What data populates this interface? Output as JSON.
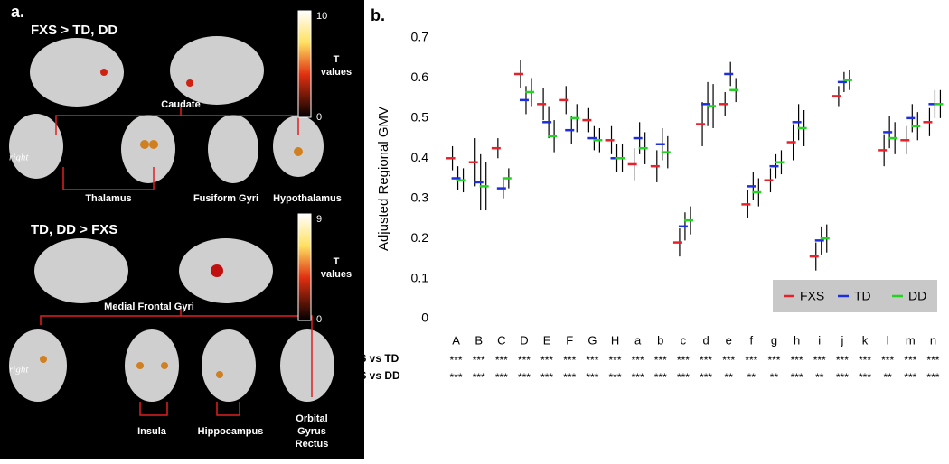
{
  "panel_a": {
    "label": "a.",
    "top": {
      "title": "FXS > TD, DD",
      "cbar_max": "10",
      "cbar_min": "0",
      "cbar_title": [
        "T",
        "values"
      ],
      "regions": [
        "Caudate",
        "Thalamus",
        "Fusiform Gyri",
        "Hypothalamus"
      ],
      "side": "right"
    },
    "bottom": {
      "title": "TD, DD > FXS",
      "cbar_max": "9",
      "cbar_min": "0",
      "cbar_title": [
        "T",
        "values"
      ],
      "regions": [
        "Medial Frontal Gyri",
        "Insula",
        "Hippocampus"
      ],
      "region_multiline": [
        "Orbital",
        "Gyrus",
        "Rectus"
      ],
      "side": "right"
    }
  },
  "chart_data": {
    "type": "errorbar",
    "panel_label": "b.",
    "y_label": "Adjusted Regional GMV",
    "categories": [
      "A",
      "B",
      "C",
      "D",
      "E",
      "F",
      "G",
      "H",
      "a",
      "b",
      "c",
      "d",
      "e",
      "f",
      "g",
      "h",
      "i",
      "j",
      "k",
      "l",
      "m",
      "n"
    ],
    "ylim": [
      0,
      0.7
    ],
    "yticks": [
      0,
      0.1,
      0.2,
      0.3,
      0.4,
      0.5,
      0.6,
      0.7
    ],
    "yticklabels": [
      "0",
      "0.1",
      "0.2",
      "0.3",
      "0.4",
      "0.5",
      "0.6",
      "0.7"
    ],
    "legend": "lower right",
    "series": [
      {
        "name": "FXS",
        "color": "#e8202a",
        "values": [
          0.4,
          0.39,
          0.425,
          0.61,
          0.535,
          0.545,
          0.495,
          0.445,
          0.385,
          0.38,
          0.19,
          0.485,
          0.535,
          0.285,
          0.345,
          0.44,
          0.155,
          0.555,
          null,
          0.42,
          0.445,
          0.49
        ],
        "errors": [
          0.03,
          0.06,
          0.025,
          0.035,
          0.04,
          0.035,
          0.03,
          0.035,
          0.04,
          0.04,
          0.035,
          0.055,
          0.03,
          0.035,
          0.03,
          0.045,
          0.035,
          0.025,
          null,
          0.04,
          0.035,
          0.035
        ]
      },
      {
        "name": "TD",
        "color": "#1c2ee0",
        "values": [
          0.35,
          0.34,
          0.325,
          0.545,
          0.49,
          0.47,
          0.45,
          0.4,
          0.45,
          0.435,
          0.23,
          0.535,
          0.61,
          0.33,
          0.38,
          0.49,
          0.195,
          0.59,
          null,
          0.465,
          0.5,
          0.535
        ],
        "errors": [
          0.03,
          0.07,
          0.025,
          0.035,
          0.04,
          0.035,
          0.03,
          0.035,
          0.04,
          0.04,
          0.035,
          0.055,
          0.03,
          0.035,
          0.03,
          0.045,
          0.035,
          0.025,
          null,
          0.04,
          0.035,
          0.035
        ]
      },
      {
        "name": "DD",
        "color": "#22d322",
        "values": [
          0.345,
          0.33,
          0.35,
          0.565,
          0.455,
          0.5,
          0.445,
          0.4,
          0.425,
          0.415,
          0.245,
          0.53,
          0.57,
          0.315,
          0.39,
          0.475,
          0.2,
          0.595,
          null,
          0.45,
          0.48,
          0.535
        ],
        "errors": [
          0.03,
          0.06,
          0.025,
          0.035,
          0.04,
          0.035,
          0.03,
          0.035,
          0.04,
          0.04,
          0.035,
          0.055,
          0.03,
          0.035,
          0.03,
          0.045,
          0.035,
          0.025,
          null,
          0.04,
          0.035,
          0.035
        ]
      }
    ],
    "comparisons": [
      {
        "label": "FXS vs TD",
        "marks": [
          "***",
          "***",
          "***",
          "***",
          "***",
          "***",
          "***",
          "***",
          "***",
          "***",
          "***",
          "***",
          "***",
          "***",
          "***",
          "***",
          "***",
          "***",
          "***",
          "***",
          "***",
          "***"
        ]
      },
      {
        "label": "FXS vs DD",
        "marks": [
          "***",
          "***",
          "***",
          "***",
          "***",
          "***",
          "***",
          "***",
          "***",
          "***",
          "***",
          "***",
          "**",
          "**",
          "**",
          "***",
          "**",
          "***",
          "***",
          "**",
          "***",
          "***"
        ]
      }
    ]
  }
}
